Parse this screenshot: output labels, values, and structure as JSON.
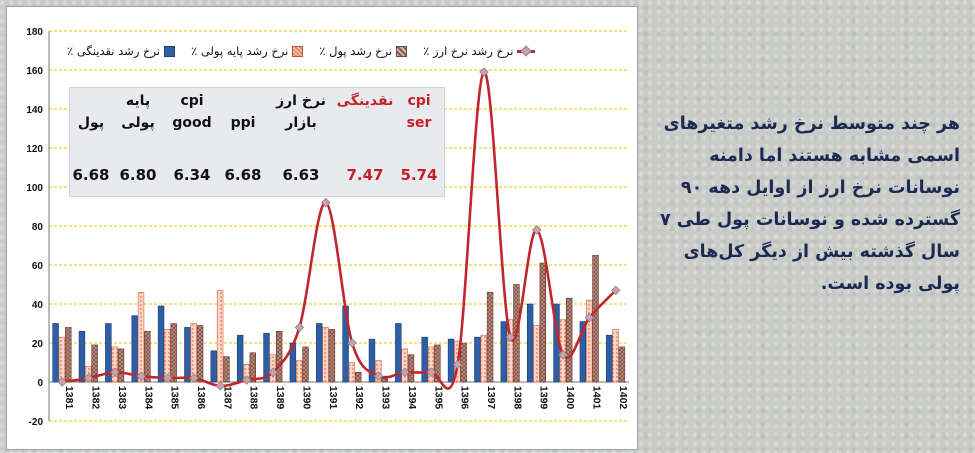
{
  "chart_data": {
    "type": "bar+line",
    "categories": [
      "1381",
      "1382",
      "1383",
      "1384",
      "1385",
      "1386",
      "1387",
      "1388",
      "1389",
      "1390",
      "1391",
      "1392",
      "1393",
      "1394",
      "1395",
      "1396",
      "1397",
      "1398",
      "1399",
      "1400",
      "1401",
      "1402"
    ],
    "ylim": [
      -20,
      180
    ],
    "yticks": [
      -20,
      0,
      20,
      40,
      60,
      80,
      100,
      120,
      140,
      160,
      180
    ],
    "grid": true,
    "legend_position": "top",
    "series": [
      {
        "name": "نرخ رشد نقدینگی ٪",
        "kind": "bar",
        "color": "#2e5fa5",
        "values": [
          30,
          26,
          30,
          34,
          39,
          28,
          16,
          24,
          25,
          20,
          30,
          39,
          22,
          30,
          23,
          22,
          23,
          31,
          40,
          40,
          31,
          24
        ]
      },
      {
        "name": "نرخ رشد پایه پولی ٪",
        "kind": "bar",
        "color": "#f4b6a0",
        "values": [
          23,
          8,
          18,
          46,
          27,
          30,
          47,
          9,
          14,
          11,
          28,
          10,
          11,
          17,
          18,
          21,
          24,
          32,
          29,
          32,
          42,
          27
        ]
      },
      {
        "name": "نرخ رشد پول ٪",
        "kind": "bar",
        "color": "#8b5a4d",
        "values": [
          28,
          19,
          17,
          26,
          30,
          29,
          13,
          15,
          26,
          18,
          27,
          5,
          3,
          14,
          19,
          20,
          46,
          50,
          61,
          43,
          65,
          18
        ]
      },
      {
        "name": "نرخ رشد نرخ ارز ٪",
        "kind": "line",
        "color": "#c0262c",
        "values": [
          0,
          2,
          5,
          3,
          2,
          2,
          -2,
          1,
          5,
          28,
          92,
          20,
          3,
          5,
          5,
          9,
          159,
          23,
          78,
          14,
          33,
          47
        ]
      }
    ]
  },
  "info_table": {
    "columns": [
      {
        "header": "cpi\nser",
        "value": "5.74",
        "highlight": true
      },
      {
        "header": "نقدینگی",
        "value": "7.47",
        "highlight": true
      },
      {
        "header": "نرخ ارز\nبازار",
        "value": "6.63",
        "highlight": false
      },
      {
        "header": "ppi",
        "value": "6.68",
        "highlight": false
      },
      {
        "header": "cpi\ngood",
        "value": "6.34",
        "highlight": false
      },
      {
        "header": "پایه\nپولی",
        "value": "6.80",
        "highlight": false
      },
      {
        "header": "پول",
        "value": "6.68",
        "highlight": false
      }
    ]
  },
  "side_text": "هر چند متوسط نرخ رشد متغیرهای اسمی مشابه هستند اما دامنه نوسانات نرخ ارز از اوایل دهه ۹۰ گسترده شده و نوسانات پول طی ۷ سال گذشته بیش از دیگر کل‌های پولی بوده است.",
  "colors": {
    "liquidity": "#2e5fa5",
    "base_money": "#f4b6a0",
    "money": "#8b5a4d",
    "fx": "#c0262c",
    "grid": "#f2c200",
    "side_text": "#1c2a52",
    "highlight": "#c2222a"
  }
}
